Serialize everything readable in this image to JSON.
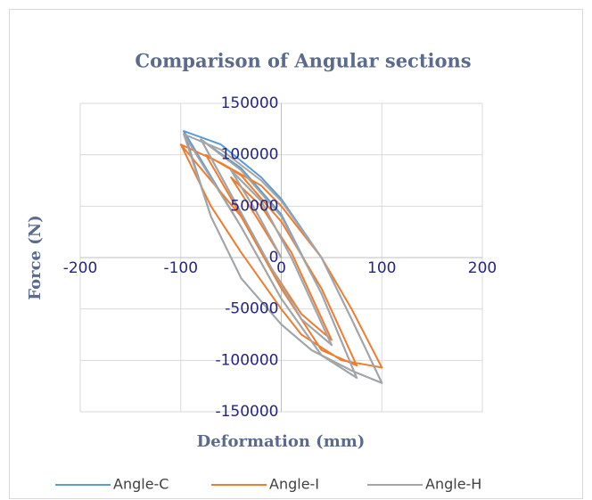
{
  "chart_data": {
    "type": "scatter",
    "title": "Comparison of Angular  sections",
    "x_label": "Deformation (mm)",
    "y_label": "Force (N)",
    "xlim": [
      -200,
      200
    ],
    "xticks": [
      -200,
      -100,
      0,
      100,
      200
    ],
    "ylim": [
      -150000,
      150000
    ],
    "yticks": [
      -150000,
      -100000,
      -50000,
      0,
      50000,
      100000,
      150000
    ],
    "grid": true,
    "legend": "bottom",
    "series": [
      {
        "name": "Angle-C",
        "color": "#5b9bd5",
        "x": [
          0,
          -25,
          -50,
          -20,
          10,
          50,
          20,
          -10,
          -80,
          -40,
          0,
          40,
          75,
          40,
          0,
          -40,
          -97,
          -60,
          -20,
          0,
          40,
          70,
          100,
          70,
          30,
          0,
          -40,
          -70,
          -97
        ],
        "values": [
          0,
          45000,
          85000,
          55000,
          0,
          -85000,
          -60000,
          -10000,
          115000,
          87000,
          42000,
          -35000,
          -117000,
          -95000,
          -40000,
          30000,
          123000,
          110000,
          78000,
          57000,
          0,
          -60000,
          -122000,
          -110000,
          -90000,
          -65000,
          -20000,
          40000,
          123000
        ]
      },
      {
        "name": "Angle-I",
        "color": "#ed7d31",
        "x": [
          0,
          -25,
          -50,
          -20,
          10,
          50,
          20,
          -10,
          -75,
          -40,
          0,
          40,
          75,
          40,
          0,
          -40,
          -100,
          -60,
          -20,
          0,
          40,
          70,
          100,
          60,
          20,
          0,
          -40,
          -70,
          -100
        ],
        "values": [
          0,
          40000,
          78000,
          50000,
          5000,
          -80000,
          -55000,
          -10000,
          100000,
          80000,
          35000,
          -30000,
          -105000,
          -90000,
          -30000,
          40000,
          110000,
          92000,
          70000,
          50000,
          0,
          -50000,
          -107000,
          -100000,
          -75000,
          -50000,
          5000,
          50000,
          110000
        ]
      },
      {
        "name": "Angle-H",
        "color": "#a5a5a5",
        "x": [
          0,
          -25,
          -50,
          -20,
          10,
          50,
          20,
          -10,
          -80,
          -40,
          0,
          40,
          75,
          40,
          0,
          -40,
          -97,
          -60,
          -20,
          0,
          40,
          70,
          100,
          70,
          30,
          0,
          -40,
          -70,
          -97
        ],
        "values": [
          0,
          45000,
          85000,
          55000,
          0,
          -85000,
          -60000,
          -10000,
          115000,
          85000,
          40000,
          -35000,
          -117000,
          -95000,
          -40000,
          30000,
          120000,
          105000,
          75000,
          55000,
          0,
          -60000,
          -122000,
          -110000,
          -90000,
          -65000,
          -20000,
          40000,
          120000
        ]
      }
    ]
  }
}
